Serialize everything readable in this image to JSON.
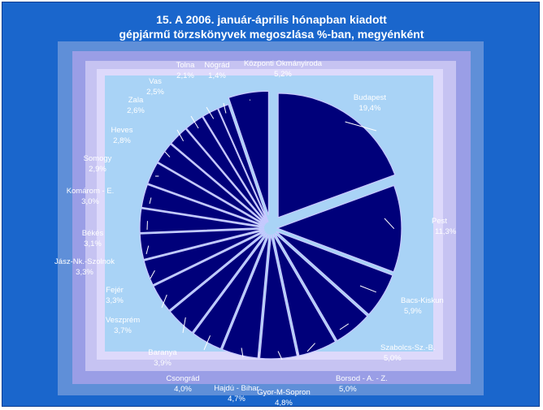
{
  "title_line1": "15. A  2006. január-április hónapban kiadott",
  "title_line2": "gépjármű törzskönyvek megoszlása %-ban, megyénként",
  "colors": {
    "frame": "#1a66cc",
    "slice": "#00007a",
    "slice_edge": "#c8c8ff",
    "text": "#ffffff"
  },
  "chart_data": {
    "type": "pie",
    "exploded": true,
    "slices": [
      {
        "name": "Budapest",
        "pct_label": "19,4%",
        "value": 19.4
      },
      {
        "name": "Pest",
        "pct_label": "11,3%",
        "value": 11.3
      },
      {
        "name": "Bacs-Kiskun",
        "pct_label": "5,9%",
        "value": 5.9
      },
      {
        "name": "Szabolcs-Sz.-B.",
        "pct_label": "5,0%",
        "value": 5.0
      },
      {
        "name": "Borsod - A. - Z.",
        "pct_label": "5,0%",
        "value": 5.0
      },
      {
        "name": "Gyor-M-Sopron",
        "pct_label": "4,8%",
        "value": 4.8
      },
      {
        "name": "Hajdú - Bihar",
        "pct_label": "4,7%",
        "value": 4.7
      },
      {
        "name": "Csongrád",
        "pct_label": "4,0%",
        "value": 4.0
      },
      {
        "name": "Baranya",
        "pct_label": "3,9%",
        "value": 3.9
      },
      {
        "name": "Veszprém",
        "pct_label": "3,7%",
        "value": 3.7
      },
      {
        "name": "Fejér",
        "pct_label": "3,3%",
        "value": 3.3
      },
      {
        "name": "Jász-Nk.-Szolnok",
        "pct_label": "3,3%",
        "value": 3.3
      },
      {
        "name": "Békés",
        "pct_label": "3,1%",
        "value": 3.1
      },
      {
        "name": "Komárom - E.",
        "pct_label": "3,0%",
        "value": 3.0
      },
      {
        "name": "Somogy",
        "pct_label": "2,9%",
        "value": 2.9
      },
      {
        "name": "Heves",
        "pct_label": "2,8%",
        "value": 2.8
      },
      {
        "name": "Zala",
        "pct_label": "2,6%",
        "value": 2.6
      },
      {
        "name": "Vas",
        "pct_label": "2,5%",
        "value": 2.5
      },
      {
        "name": "Tolna",
        "pct_label": "2,1%",
        "value": 2.1
      },
      {
        "name": "Nógrád",
        "pct_label": "1,4%",
        "value": 1.4
      },
      {
        "name": "Központi Okmányiroda",
        "pct_label": "5,2%",
        "value": 5.2
      }
    ]
  }
}
